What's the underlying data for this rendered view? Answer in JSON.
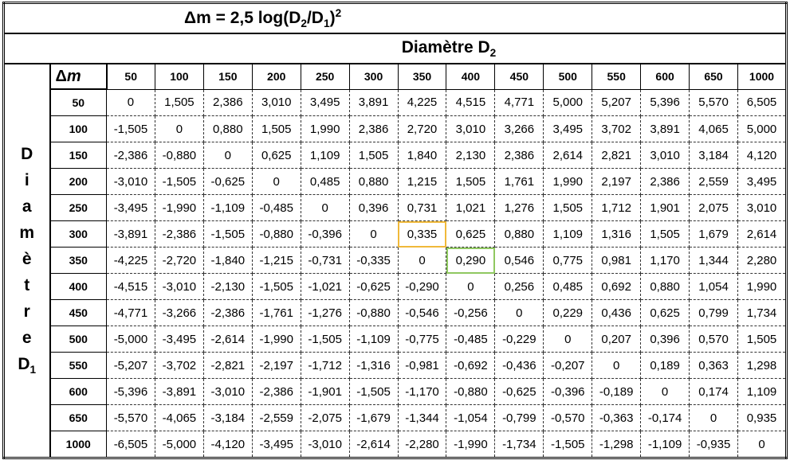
{
  "title": {
    "parts": [
      "Δm = 2,5 log(D",
      "2",
      "/D",
      "1",
      ")",
      "2"
    ]
  },
  "column_header": {
    "parts": [
      "Diamètre D",
      "2"
    ]
  },
  "row_header": {
    "word": [
      "D",
      "i",
      "a",
      "m",
      "è",
      "t",
      "r",
      "e"
    ],
    "symbol": "D",
    "index": "1"
  },
  "corner": {
    "delta": "Δ",
    "symbol": "m"
  },
  "table": {
    "columns": [
      50,
      100,
      150,
      200,
      250,
      300,
      350,
      400,
      450,
      500,
      550,
      600,
      650,
      1000
    ],
    "row_labels": [
      50,
      100,
      150,
      200,
      250,
      300,
      350,
      400,
      450,
      500,
      550,
      600,
      650,
      1000
    ],
    "rows": [
      [
        "0",
        "1,505",
        "2,386",
        "3,010",
        "3,495",
        "3,891",
        "4,225",
        "4,515",
        "4,771",
        "5,000",
        "5,207",
        "5,396",
        "5,570",
        "6,505"
      ],
      [
        "-1,505",
        "0",
        "0,880",
        "1,505",
        "1,990",
        "2,386",
        "2,720",
        "3,010",
        "3,266",
        "3,495",
        "3,702",
        "3,891",
        "4,065",
        "5,000"
      ],
      [
        "-2,386",
        "-0,880",
        "0",
        "0,625",
        "1,109",
        "1,505",
        "1,840",
        "2,130",
        "2,386",
        "2,614",
        "2,821",
        "3,010",
        "3,184",
        "4,120"
      ],
      [
        "-3,010",
        "-1,505",
        "-0,625",
        "0",
        "0,485",
        "0,880",
        "1,215",
        "1,505",
        "1,761",
        "1,990",
        "2,197",
        "2,386",
        "2,559",
        "3,495"
      ],
      [
        "-3,495",
        "-1,990",
        "-1,109",
        "-0,485",
        "0",
        "0,396",
        "0,731",
        "1,021",
        "1,276",
        "1,505",
        "1,712",
        "1,901",
        "2,075",
        "3,010"
      ],
      [
        "-3,891",
        "-2,386",
        "-1,505",
        "-0,880",
        "-0,396",
        "0",
        "0,335",
        "0,625",
        "0,880",
        "1,109",
        "1,316",
        "1,505",
        "1,679",
        "2,614"
      ],
      [
        "-4,225",
        "-2,720",
        "-1,840",
        "-1,215",
        "-0,731",
        "-0,335",
        "0",
        "0,290",
        "0,546",
        "0,775",
        "0,981",
        "1,170",
        "1,344",
        "2,280"
      ],
      [
        "-4,515",
        "-3,010",
        "-2,130",
        "-1,505",
        "-1,021",
        "-0,625",
        "-0,290",
        "0",
        "0,256",
        "0,485",
        "0,692",
        "0,880",
        "1,054",
        "1,990"
      ],
      [
        "-4,771",
        "-3,266",
        "-2,386",
        "-1,761",
        "-1,276",
        "-0,880",
        "-0,546",
        "-0,256",
        "0",
        "0,229",
        "0,436",
        "0,625",
        "0,799",
        "1,734"
      ],
      [
        "-5,000",
        "-3,495",
        "-2,614",
        "-1,990",
        "-1,505",
        "-1,109",
        "-0,775",
        "-0,485",
        "-0,229",
        "0",
        "0,207",
        "0,396",
        "0,570",
        "1,505"
      ],
      [
        "-5,207",
        "-3,702",
        "-2,821",
        "-2,197",
        "-1,712",
        "-1,316",
        "-0,981",
        "-0,692",
        "-0,436",
        "-0,207",
        "0",
        "0,189",
        "0,363",
        "1,298"
      ],
      [
        "-5,396",
        "-3,891",
        "-3,010",
        "-2,386",
        "-1,901",
        "-1,505",
        "-1,170",
        "-0,880",
        "-0,625",
        "-0,396",
        "-0,189",
        "0",
        "0,174",
        "1,109"
      ],
      [
        "-5,570",
        "-4,065",
        "-3,184",
        "-2,559",
        "-2,075",
        "-1,679",
        "-1,344",
        "-1,054",
        "-0,799",
        "-0,570",
        "-0,363",
        "-0,174",
        "0",
        "0,935"
      ],
      [
        "-6,505",
        "-5,000",
        "-4,120",
        "-3,495",
        "-3,010",
        "-2,614",
        "-2,280",
        "-1,990",
        "-1,734",
        "-1,505",
        "-1,298",
        "-1,109",
        "-0,935",
        "0"
      ]
    ]
  }
}
